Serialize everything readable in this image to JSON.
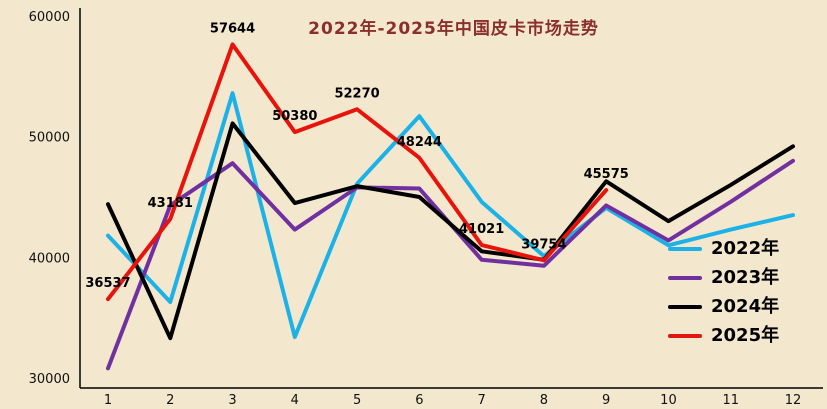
{
  "chart_data": {
    "type": "line",
    "title": "2022年-2025年中国皮卡市场走势",
    "xlabel": "",
    "ylabel": "",
    "x": [
      1,
      2,
      3,
      4,
      5,
      6,
      7,
      8,
      9,
      10,
      11,
      12
    ],
    "ylim": [
      30000,
      60000
    ],
    "yticks": [
      30000,
      40000,
      50000,
      60000
    ],
    "grid": false,
    "legend_position": "bottom-right-inside",
    "series": [
      {
        "name": "2022年",
        "color": "#1cb2e8",
        "show_labels": false,
        "values": [
          41800,
          36300,
          53600,
          33400,
          46100,
          51700,
          44600,
          40100,
          44100,
          41000,
          42300,
          43500
        ]
      },
      {
        "name": "2023年",
        "color": "#7030a0",
        "show_labels": false,
        "values": [
          30800,
          44300,
          47800,
          42300,
          45800,
          45700,
          39800,
          39300,
          44300,
          41400,
          44600,
          48000
        ]
      },
      {
        "name": "2024年",
        "color": "#000000",
        "show_labels": false,
        "values": [
          44400,
          33300,
          51100,
          44500,
          45900,
          45000,
          40500,
          39800,
          46300,
          43000,
          46000,
          49200
        ]
      },
      {
        "name": "2025年",
        "color": "#e8140c",
        "show_labels": true,
        "values": [
          36537,
          43181,
          57644,
          50380,
          52270,
          48244,
          41021,
          39754,
          45575
        ]
      }
    ]
  }
}
